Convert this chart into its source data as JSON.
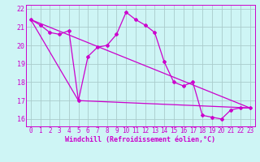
{
  "xlabel": "Windchill (Refroidissement éolien,°C)",
  "bg_color": "#cef5f5",
  "line_color": "#cc00cc",
  "grid_color": "#aacccc",
  "spine_color": "#cc00cc",
  "ylim": [
    15.6,
    22.2
  ],
  "xlim": [
    -0.5,
    23.5
  ],
  "yticks": [
    16,
    17,
    18,
    19,
    20,
    21,
    22
  ],
  "xticks": [
    0,
    1,
    2,
    3,
    4,
    5,
    6,
    7,
    8,
    9,
    10,
    11,
    12,
    13,
    14,
    15,
    16,
    17,
    18,
    19,
    20,
    21,
    22,
    23
  ],
  "hours": [
    0,
    1,
    2,
    3,
    4,
    5,
    6,
    7,
    8,
    9,
    10,
    11,
    12,
    13,
    14,
    15,
    16,
    17,
    18,
    19,
    20,
    21,
    22,
    23
  ],
  "windchill": [
    21.4,
    21.1,
    20.7,
    20.6,
    20.8,
    17.0,
    19.4,
    19.9,
    20.0,
    20.6,
    21.8,
    21.4,
    21.1,
    20.7,
    19.1,
    18.0,
    17.8,
    18.0,
    16.2,
    16.1,
    16.0,
    16.5,
    16.6,
    16.6
  ],
  "trend1_x": [
    0,
    23
  ],
  "trend1_y": [
    21.4,
    16.6
  ],
  "trend2_x": [
    0,
    5,
    23
  ],
  "trend2_y": [
    21.4,
    17.0,
    16.6
  ],
  "xlabel_fontsize": 6.0,
  "tick_fontsize": 5.5
}
